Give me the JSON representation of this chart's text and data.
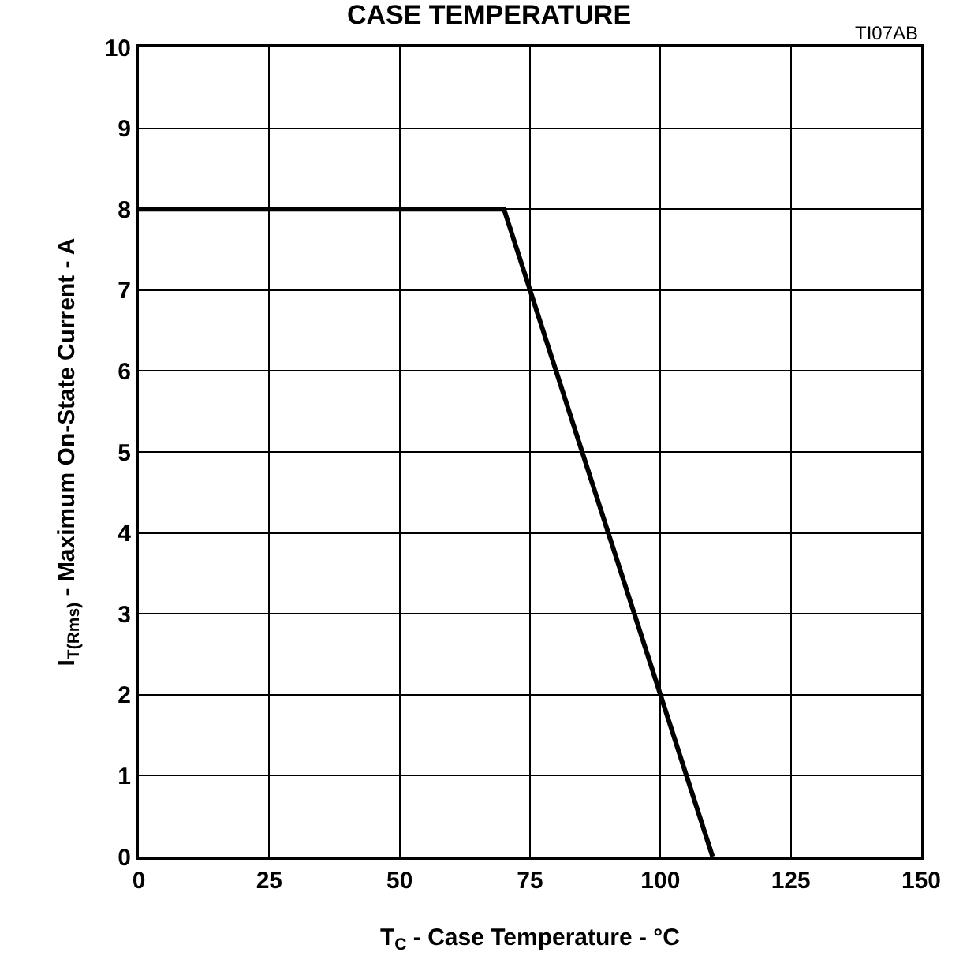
{
  "chart_data": {
    "type": "line",
    "title": "CASE TEMPERATURE",
    "annotations": [
      "TI07AB"
    ],
    "xlabel": "T$_{C}$ - Case Temperature - °C",
    "ylabel": "I$_{T(Rms)}$ - Maximum On-State Current - A",
    "x": [
      0,
      70,
      110
    ],
    "series": [
      {
        "color": "#000000",
        "values": [
          8,
          8,
          0
        ]
      }
    ],
    "xlim": [
      0,
      150
    ],
    "xticks": [
      0,
      25,
      50,
      75,
      100,
      125,
      150
    ],
    "ylim": [
      0,
      10
    ],
    "yticks": [
      0,
      1,
      2,
      3,
      4,
      5,
      6,
      7,
      8,
      9,
      10
    ],
    "grid": true,
    "marker": "none",
    "line_style": "solid"
  }
}
